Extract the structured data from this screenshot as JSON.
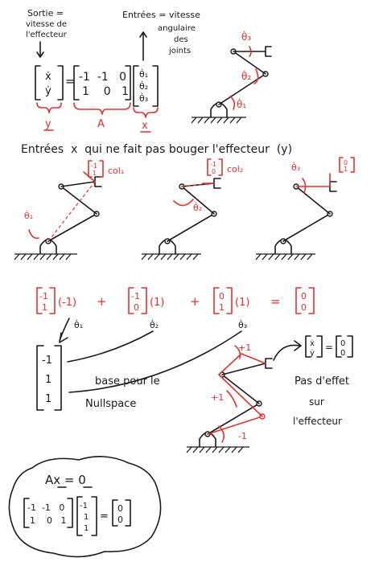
{
  "intro": {
    "output_label": [
      "Sortie =",
      "vitesse de",
      "l'effecteur"
    ],
    "input_label_line1": "Entrées = vitesse",
    "input_label_rest": [
      "angulaire",
      "des",
      "joints"
    ],
    "output_vector": [
      "ẋ",
      "ẏ"
    ],
    "matrix_row1": "-1  -1   0",
    "matrix_row2": "1    0   1",
    "input_vector": [
      "θ̇₁",
      "θ̇₂",
      "θ̇₃"
    ],
    "equals": "=",
    "brace_labels": [
      "y",
      "A",
      "x"
    ],
    "robot_angle_labels": [
      "θ̇₁",
      "θ̇₂",
      "θ̇₃"
    ]
  },
  "section2": {
    "heading": "Entrées  x  qui ne fait pas bouger l'effecteur  (y)",
    "columns": [
      {
        "label": "col₁",
        "vector": [
          "-1",
          "1"
        ],
        "angle": "θ̇₁"
      },
      {
        "label": "col₂",
        "vector": [
          "-1",
          "0"
        ],
        "angle": "θ̇₂"
      },
      {
        "label": "",
        "vector": [
          "0",
          "1"
        ],
        "angle": "θ̇₃"
      }
    ]
  },
  "combination": {
    "vectors": [
      {
        "top": "-1",
        "bottom": "1",
        "coef": "(-1)"
      },
      {
        "top": "-1",
        "bottom": "0",
        "coef": "(1)"
      },
      {
        "top": "0",
        "bottom": "1",
        "coef": "(1)"
      }
    ],
    "plus": "+",
    "equals": "=",
    "result": [
      "0",
      "0"
    ],
    "theta_labels": [
      "θ̇₁",
      "θ̇₂",
      "θ̇₃"
    ]
  },
  "nullspace": {
    "vector": [
      "-1",
      "1",
      "1"
    ],
    "label": [
      "base pour le",
      "Nullspace"
    ]
  },
  "robot_annotation": {
    "joint_labels": [
      "+1",
      "+1",
      "-1"
    ],
    "velocity_vector": [
      "ẋ",
      "ẏ"
    ],
    "velocity_result": [
      "0",
      "0"
    ],
    "effect_text": [
      "Pas d'effet",
      "sur",
      "l'effecteur"
    ]
  },
  "summary": {
    "equation": "Ax = 0",
    "matrix_row1": "-1  -1   0",
    "matrix_row2": "1    0   1",
    "vector": [
      "-1",
      "1",
      "1"
    ],
    "result": [
      "0",
      "0"
    ],
    "equals": "="
  },
  "colors": {
    "ink": "#1a1a1a",
    "red": "#e0322f"
  }
}
